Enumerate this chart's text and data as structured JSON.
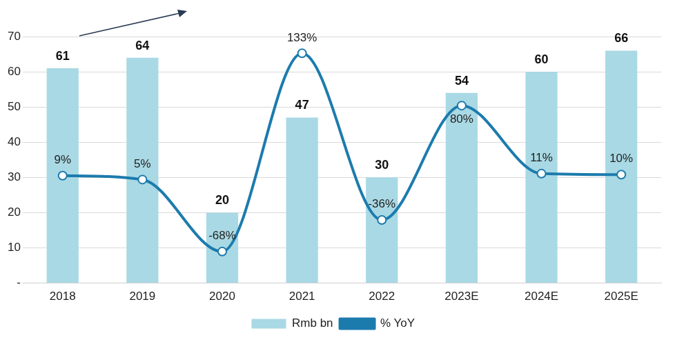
{
  "chart_data": {
    "type": "bar",
    "categories": [
      "2018",
      "2019",
      "2020",
      "2021",
      "2022",
      "2023E",
      "2024E",
      "2025E"
    ],
    "series": [
      {
        "name": "Rmb bn",
        "color": "#a9d9e4",
        "values": [
          61,
          64,
          20,
          47,
          30,
          54,
          60,
          66
        ]
      },
      {
        "name": "% YoY",
        "type": "line",
        "axis": "y2",
        "color": "#1c7bad",
        "values": [
          9,
          5,
          -68,
          133,
          -36,
          80,
          11,
          10
        ],
        "value_labels": [
          "9%",
          "5%",
          "-68%",
          "133%",
          "-36%",
          "80%",
          "11%",
          "10%"
        ]
      }
    ],
    "data_labels": true,
    "ylim": [
      0,
      70
    ],
    "yticks": [
      {
        "value": 0,
        "label": "-"
      },
      10,
      20,
      30,
      40,
      50,
      60,
      70
    ],
    "y2lim": [
      -100,
      150
    ],
    "grid": "y",
    "legend": "bottom",
    "marker": "circle",
    "line_style": "solid"
  }
}
